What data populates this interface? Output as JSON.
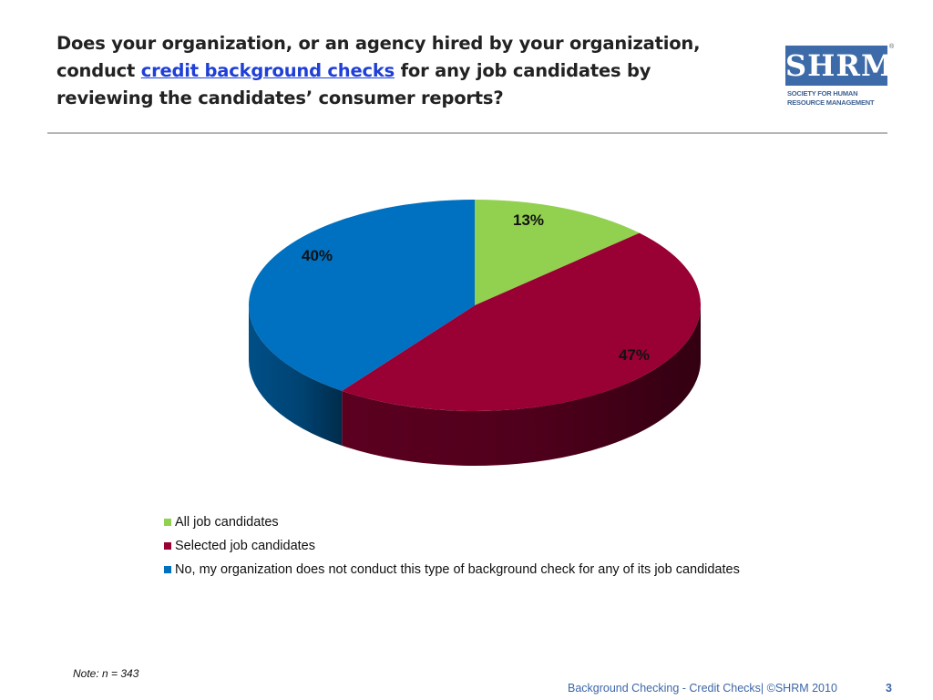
{
  "slide": {
    "title_part1": "Does your organization, or an agency hired by your organization, conduct ",
    "title_link": "credit background checks",
    "title_part2": " for any job candidates by reviewing the candidates’ consumer reports?",
    "logo_text": "SHRM",
    "logo_registered": "®",
    "logo_tagline_line1": "SOCIETY FOR HUMAN",
    "logo_tagline_line2": "RESOURCE MANAGEMENT",
    "note": "Note: n = 343",
    "footer": "Background Checking  - Credit Checks| ©SHRM 2010",
    "page_number": "3"
  },
  "chart_data": {
    "type": "pie",
    "style": "3d",
    "title": "",
    "legend_position": "bottom",
    "slices": [
      {
        "label": "All job candidates",
        "value": 13,
        "value_label": "13%",
        "color": "#92d050",
        "side_color": "#6e9e3c"
      },
      {
        "label": "Selected job candidates",
        "value": 47,
        "value_label": "47%",
        "color": "#990033",
        "side_color": "#5c0020"
      },
      {
        "label": "No, my organization does not conduct this type of background check for any of its job candidates",
        "value": 40,
        "value_label": "40%",
        "color": "#0070c0",
        "side_color": "#004f87"
      }
    ]
  }
}
